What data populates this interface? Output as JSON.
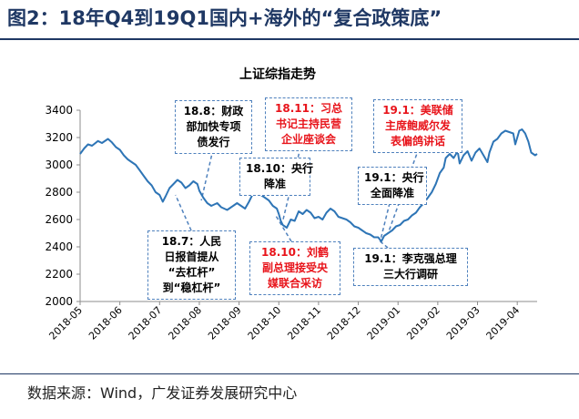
{
  "header": {
    "figure_title": "图2：18年Q4到19Q1国内+海外的“复合政策底”"
  },
  "footer": {
    "source": "数据来源：Wind，广发证券发展研究中心"
  },
  "colors": {
    "line": "#2e75b6",
    "title": "#1f3864",
    "annotation_red": "#e8141b",
    "annotation_border": "#4f81bd"
  },
  "chart_data": {
    "type": "line",
    "title": "上证综指走势",
    "xlabel": "",
    "ylabel": "",
    "ylim": [
      2000,
      3400
    ],
    "yticks": [
      "2000",
      "2200",
      "2400",
      "2600",
      "2800",
      "3000",
      "3200",
      "3400"
    ],
    "categories": [
      "2018-05",
      "2018-06",
      "2018-07",
      "2018-08",
      "2018-09",
      "2018-10",
      "2018-11",
      "2018-12",
      "2019-01",
      "2019-02",
      "2019-03",
      "2019-04"
    ],
    "grid": false,
    "series": [
      {
        "values": [
          [
            0.0,
            3080
          ],
          [
            0.1,
            3120
          ],
          [
            0.2,
            3150
          ],
          [
            0.3,
            3140
          ],
          [
            0.45,
            3175
          ],
          [
            0.55,
            3160
          ],
          [
            0.7,
            3190
          ],
          [
            0.8,
            3165
          ],
          [
            0.9,
            3130
          ],
          [
            1.0,
            3110
          ],
          [
            1.1,
            3070
          ],
          [
            1.2,
            3040
          ],
          [
            1.3,
            3020
          ],
          [
            1.4,
            3000
          ],
          [
            1.5,
            2960
          ],
          [
            1.6,
            2920
          ],
          [
            1.7,
            2880
          ],
          [
            1.8,
            2850
          ],
          [
            1.9,
            2800
          ],
          [
            2.0,
            2780
          ],
          [
            2.08,
            2730
          ],
          [
            2.15,
            2770
          ],
          [
            2.25,
            2830
          ],
          [
            2.35,
            2860
          ],
          [
            2.45,
            2890
          ],
          [
            2.55,
            2870
          ],
          [
            2.65,
            2830
          ],
          [
            2.75,
            2850
          ],
          [
            2.85,
            2880
          ],
          [
            2.95,
            2860
          ],
          [
            3.0,
            2810
          ],
          [
            3.1,
            2760
          ],
          [
            3.2,
            2720
          ],
          [
            3.3,
            2700
          ],
          [
            3.45,
            2720
          ],
          [
            3.55,
            2690
          ],
          [
            3.7,
            2670
          ],
          [
            3.85,
            2700
          ],
          [
            3.95,
            2720
          ],
          [
            4.05,
            2700
          ],
          [
            4.15,
            2680
          ],
          [
            4.25,
            2730
          ],
          [
            4.35,
            2790
          ],
          [
            4.45,
            2800
          ],
          [
            4.55,
            2780
          ],
          [
            4.65,
            2760
          ],
          [
            4.75,
            2740
          ],
          [
            4.85,
            2700
          ],
          [
            4.95,
            2680
          ],
          [
            5.0,
            2640
          ],
          [
            5.05,
            2590
          ],
          [
            5.1,
            2560
          ],
          [
            5.2,
            2540
          ],
          [
            5.3,
            2600
          ],
          [
            5.4,
            2590
          ],
          [
            5.5,
            2660
          ],
          [
            5.6,
            2640
          ],
          [
            5.7,
            2670
          ],
          [
            5.8,
            2650
          ],
          [
            5.9,
            2610
          ],
          [
            6.0,
            2620
          ],
          [
            6.1,
            2600
          ],
          [
            6.2,
            2650
          ],
          [
            6.3,
            2680
          ],
          [
            6.4,
            2660
          ],
          [
            6.5,
            2620
          ],
          [
            6.6,
            2610
          ],
          [
            6.7,
            2600
          ],
          [
            6.8,
            2580
          ],
          [
            6.9,
            2550
          ],
          [
            7.0,
            2540
          ],
          [
            7.1,
            2520
          ],
          [
            7.2,
            2500
          ],
          [
            7.3,
            2490
          ],
          [
            7.4,
            2470
          ],
          [
            7.5,
            2470
          ],
          [
            7.58,
            2440
          ],
          [
            7.65,
            2480
          ],
          [
            7.75,
            2500
          ],
          [
            7.85,
            2520
          ],
          [
            7.95,
            2550
          ],
          [
            8.05,
            2560
          ],
          [
            8.15,
            2590
          ],
          [
            8.25,
            2600
          ],
          [
            8.35,
            2630
          ],
          [
            8.45,
            2650
          ],
          [
            8.55,
            2690
          ],
          [
            8.65,
            2720
          ],
          [
            8.75,
            2760
          ],
          [
            8.85,
            2800
          ],
          [
            8.95,
            2860
          ],
          [
            9.05,
            2940
          ],
          [
            9.15,
            2980
          ],
          [
            9.2,
            3050
          ],
          [
            9.3,
            3080
          ],
          [
            9.4,
            3050
          ],
          [
            9.5,
            3100
          ],
          [
            9.55,
            3010
          ],
          [
            9.65,
            3070
          ],
          [
            9.75,
            3100
          ],
          [
            9.85,
            3030
          ],
          [
            9.95,
            3090
          ],
          [
            10.05,
            3120
          ],
          [
            10.15,
            3070
          ],
          [
            10.25,
            3020
          ],
          [
            10.3,
            3090
          ],
          [
            10.4,
            3170
          ],
          [
            10.5,
            3190
          ],
          [
            10.6,
            3230
          ],
          [
            10.7,
            3250
          ],
          [
            10.8,
            3240
          ],
          [
            10.9,
            3230
          ],
          [
            10.95,
            3150
          ],
          [
            11.0,
            3200
          ],
          [
            11.05,
            3250
          ],
          [
            11.12,
            3260
          ],
          [
            11.2,
            3230
          ],
          [
            11.28,
            3170
          ],
          [
            11.35,
            3090
          ],
          [
            11.45,
            3070
          ],
          [
            11.5,
            3080
          ]
        ]
      }
    ],
    "annotations": [
      {
        "id": "a1",
        "color": "black",
        "lines": [
          "18.7：人民",
          "日报首提从",
          "“去杠杆”",
          "到“稳杠杆”"
        ],
        "x": 2.4,
        "y": 2780
      },
      {
        "id": "a2",
        "color": "black",
        "lines": [
          "18.8：财政",
          "部加快专项",
          "债发行"
        ],
        "x": 3.05,
        "y": 2740
      },
      {
        "id": "a3",
        "color": "black",
        "lines": [
          "18.10：央行",
          "降准"
        ],
        "x": 4.55,
        "y": 2780
      },
      {
        "id": "a4",
        "color": "red",
        "lines": [
          "18.11：习总",
          "书记主持民营",
          "企业座谈会"
        ],
        "x": 5.1,
        "y": 2590
      },
      {
        "id": "a5",
        "color": "red",
        "lines": [
          "18.10：刘鹤",
          "副总理接受央",
          "媒联合采访"
        ],
        "x": 4.9,
        "y": 2640
      },
      {
        "id": "a6",
        "color": "red",
        "lines": [
          "19.1：美联储",
          "主席鲍威尔发",
          "表偏鸽讲话"
        ],
        "x": 7.75,
        "y": 2500
      },
      {
        "id": "a7",
        "color": "black",
        "lines": [
          "19.1：央行",
          "全面降准"
        ],
        "x": 7.55,
        "y": 2440
      },
      {
        "id": "a8",
        "color": "black",
        "lines": [
          "19.1：李克强总理",
          "三大行调研"
        ],
        "x": 7.55,
        "y": 2440
      }
    ]
  }
}
